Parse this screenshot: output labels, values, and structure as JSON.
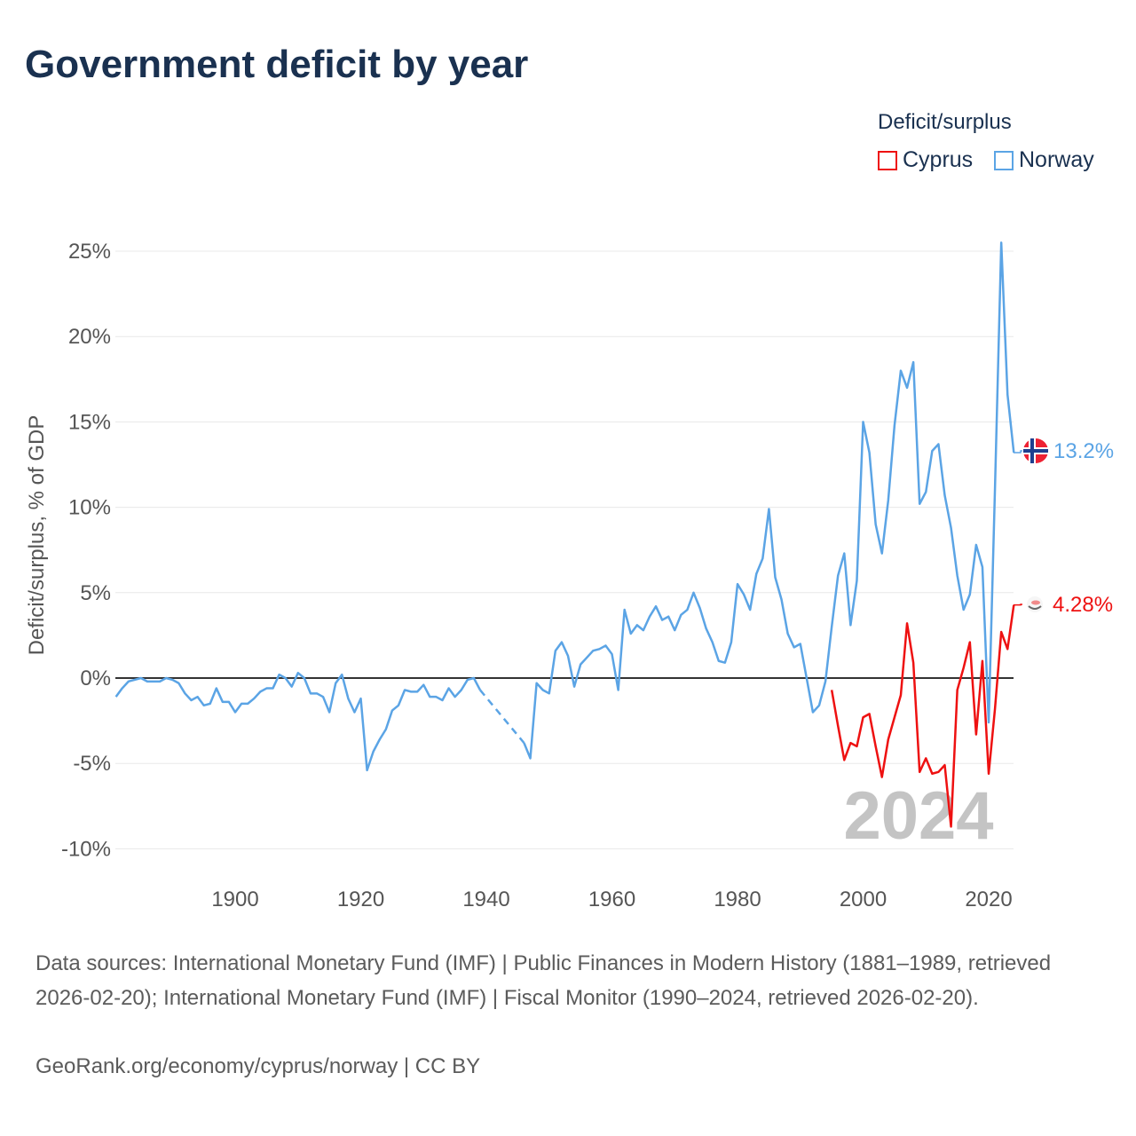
{
  "title": "Government deficit by year",
  "legend": {
    "title": "Deficit/surplus",
    "items": [
      {
        "label": "Cyprus"
      },
      {
        "label": "Norway"
      }
    ]
  },
  "footer": {
    "sources": "Data sources: International Monetary Fund (IMF) | Public Finances in Modern History (1881–1989, retrieved 2026-02-20); International Monetary Fund (IMF) | Fiscal Monitor (1990–2024, retrieved 2026-02-20).",
    "credit": "GeoRank.org/economy/cyprus/norway | CC BY"
  },
  "colors": {
    "cyprus": "#ee1111",
    "norway": "#5ba4e5",
    "title": "#1a3150",
    "watermark": "#c4c4c4"
  },
  "chart_data": {
    "type": "line",
    "title": "Government deficit by year",
    "ylabel": "Deficit/surplus, % of GDP",
    "xlabel": "",
    "xlim": [
      1881,
      2024
    ],
    "ylim": [
      -10,
      25
    ],
    "x_ticks": [
      1900,
      1920,
      1940,
      1960,
      1980,
      2000,
      2020
    ],
    "y_ticks": [
      {
        "v": 25,
        "label": "25%"
      },
      {
        "v": 20,
        "label": "20%"
      },
      {
        "v": 15,
        "label": "15%"
      },
      {
        "v": 10,
        "label": "10%"
      },
      {
        "v": 5,
        "label": "5%"
      },
      {
        "v": 0,
        "label": "0%"
      },
      {
        "v": -5,
        "label": "-5%"
      },
      {
        "v": -10,
        "label": "-10%"
      }
    ],
    "grid": true,
    "legend_position": "top-right",
    "watermark_year": "2024",
    "series": [
      {
        "name": "Norway",
        "color": "#5ba4e5",
        "start_year": 1881,
        "end_label": "13.2%",
        "flag": "norway-flag",
        "values": [
          -1.1,
          -0.6,
          -0.2,
          -0.1,
          0.0,
          -0.2,
          -0.2,
          -0.2,
          0.0,
          -0.1,
          -0.3,
          -0.9,
          -1.3,
          -1.1,
          -1.6,
          -1.5,
          -0.6,
          -1.4,
          -1.4,
          -2.0,
          -1.5,
          -1.5,
          -1.2,
          -0.8,
          -0.6,
          -0.6,
          0.2,
          0.0,
          -0.5,
          0.3,
          0.0,
          -0.9,
          -0.9,
          -1.1,
          -2.0,
          -0.3,
          0.2,
          -1.2,
          -2.0,
          -1.2,
          -5.4,
          -4.3,
          -3.6,
          -3.0,
          -1.9,
          -1.6,
          -0.7,
          -0.8,
          -0.8,
          -0.4,
          -1.1,
          -1.1,
          -1.3,
          -0.6,
          -1.1,
          -0.7,
          -0.1,
          0.0,
          -0.7,
          null,
          null,
          null,
          null,
          null,
          null,
          -3.8,
          -4.7,
          -0.3,
          -0.7,
          -0.9,
          1.6,
          2.1,
          1.3,
          -0.5,
          0.8,
          1.2,
          1.6,
          1.7,
          1.9,
          1.4,
          -0.7,
          4.0,
          2.6,
          3.1,
          2.8,
          3.6,
          4.2,
          3.4,
          3.6,
          2.8,
          3.7,
          4.0,
          5.0,
          4.1,
          2.9,
          2.1,
          1.0,
          0.9,
          2.1,
          5.5,
          4.9,
          4.0,
          6.1,
          7.0,
          9.9,
          5.9,
          4.6,
          2.6,
          1.8,
          2.0,
          0.0,
          -2.0,
          -1.6,
          -0.2,
          3.0,
          6.0,
          7.3,
          3.1,
          5.7,
          15.0,
          13.2,
          9.0,
          7.3,
          10.4,
          14.8,
          18.0,
          17.0,
          18.5,
          10.2,
          10.9,
          13.3,
          13.7,
          10.7,
          8.8,
          6.0,
          4.0,
          4.9,
          7.8,
          6.5,
          -2.6,
          11.1,
          25.5,
          16.6,
          13.2
        ]
      },
      {
        "name": "Cyprus",
        "color": "#ee1111",
        "start_year": 1995,
        "end_label": "4.28%",
        "flag": "cyprus-flag",
        "values": [
          -0.7,
          -2.8,
          -4.8,
          -3.8,
          -4.0,
          -2.3,
          -2.1,
          -4.0,
          -5.8,
          -3.6,
          -2.3,
          -1.0,
          3.2,
          0.9,
          -5.5,
          -4.7,
          -5.6,
          -5.5,
          -5.1,
          -8.7,
          -0.7,
          0.6,
          2.1,
          -3.3,
          1.0,
          -5.6,
          -1.8,
          2.7,
          1.7,
          4.28
        ]
      }
    ]
  }
}
